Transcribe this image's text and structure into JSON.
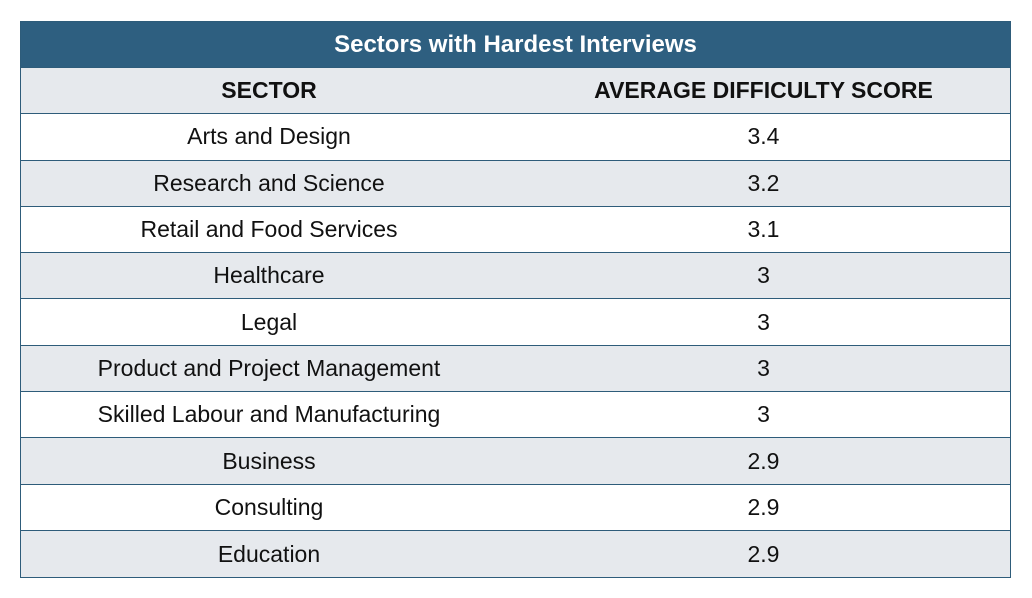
{
  "chart_data": {
    "type": "table",
    "title": "Sectors with Hardest Interviews",
    "columns": [
      "SECTOR",
      "AVERAGE DIFFICULTY SCORE"
    ],
    "rows": [
      {
        "sector": "Arts and Design",
        "score": "3.4"
      },
      {
        "sector": "Research and Science",
        "score": "3.2"
      },
      {
        "sector": "Retail and Food Services",
        "score": "3.1"
      },
      {
        "sector": "Healthcare",
        "score": "3"
      },
      {
        "sector": "Legal",
        "score": "3"
      },
      {
        "sector": "Product and Project Management",
        "score": "3"
      },
      {
        "sector": "Skilled Labour and Manufacturing",
        "score": "3"
      },
      {
        "sector": "Business",
        "score": "2.9"
      },
      {
        "sector": "Consulting",
        "score": "2.9"
      },
      {
        "sector": "Education",
        "score": "2.9"
      }
    ],
    "colors": {
      "title_background": "#2e5f80",
      "header_background": "#e6e9ed",
      "shaded_row": "#e6e9ed",
      "border": "#2e5c7a"
    }
  }
}
